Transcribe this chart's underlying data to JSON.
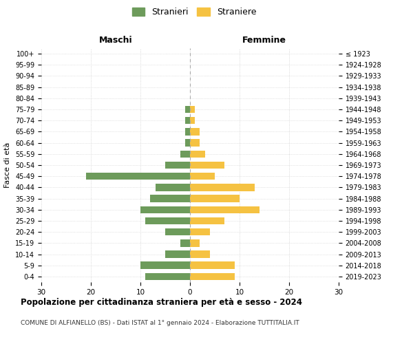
{
  "age_groups": [
    "100+",
    "95-99",
    "90-94",
    "85-89",
    "80-84",
    "75-79",
    "70-74",
    "65-69",
    "60-64",
    "55-59",
    "50-54",
    "45-49",
    "40-44",
    "35-39",
    "30-34",
    "25-29",
    "20-24",
    "15-19",
    "10-14",
    "5-9",
    "0-4"
  ],
  "birth_years": [
    "≤ 1923",
    "1924-1928",
    "1929-1933",
    "1934-1938",
    "1939-1943",
    "1944-1948",
    "1949-1953",
    "1954-1958",
    "1959-1963",
    "1964-1968",
    "1969-1973",
    "1974-1978",
    "1979-1983",
    "1984-1988",
    "1989-1993",
    "1994-1998",
    "1999-2003",
    "2004-2008",
    "2009-2013",
    "2014-2018",
    "2019-2023"
  ],
  "maschi": [
    0,
    0,
    0,
    0,
    0,
    1,
    1,
    1,
    1,
    2,
    5,
    21,
    7,
    8,
    10,
    9,
    5,
    2,
    5,
    10,
    9
  ],
  "femmine": [
    0,
    0,
    0,
    0,
    0,
    1,
    1,
    2,
    2,
    3,
    7,
    5,
    13,
    10,
    14,
    7,
    4,
    2,
    4,
    9,
    9
  ],
  "maschi_color": "#6d9b5b",
  "femmine_color": "#f5c242",
  "title": "Popolazione per cittadinanza straniera per età e sesso - 2024",
  "subtitle": "COMUNE DI ALFIANELLO (BS) - Dati ISTAT al 1° gennaio 2024 - Elaborazione TUTTITALIA.IT",
  "ylabel_left": "Fasce di età",
  "xlabel_left": "Maschi",
  "xlabel_right": "Femmine",
  "legend_maschi": "Stranieri",
  "legend_femmine": "Straniere",
  "xlim": 30,
  "background_color": "#ffffff",
  "grid_color": "#cccccc"
}
